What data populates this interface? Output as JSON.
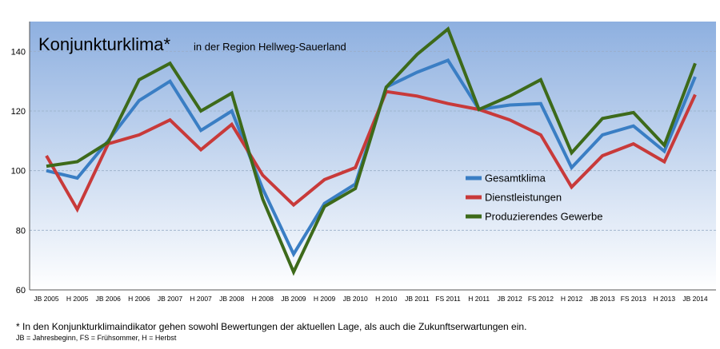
{
  "colors": {
    "gesamt": "#3a7ec4",
    "dienst": "#c83a3a",
    "prod": "#3d6a1a",
    "plot_top": "#8eb0e0",
    "plot_bottom": "#ffffff"
  },
  "chart_data": {
    "type": "line",
    "title": "Konjunkturklima*",
    "subtitle": "in der Region Hellweg-Sauerland",
    "xlabel": "",
    "ylabel": "",
    "ylim": [
      60,
      150
    ],
    "yticks": [
      60,
      80,
      100,
      120,
      140
    ],
    "grid": true,
    "legend_position": "right-center",
    "categories": [
      "JB 2005",
      "H 2005",
      "JB 2006",
      "H 2006",
      "JB 2007",
      "H 2007",
      "JB 2008",
      "H 2008",
      "JB 2009",
      "H 2009",
      "JB 2010",
      "H 2010",
      "JB 2011",
      "FS 2011",
      "H 2011",
      "JB 2012",
      "FS 2012",
      "H 2012",
      "JB 2013",
      "FS 2013",
      "H 2013",
      "JB 2014"
    ],
    "series": [
      {
        "name": "Gesamtklima",
        "color": "#3a7ec4",
        "values": [
          100,
          97.5,
          110,
          123.5,
          130,
          113.5,
          120,
          94,
          72,
          89,
          95.5,
          128,
          133,
          137,
          120.5,
          122,
          122.5,
          101,
          112,
          115,
          106.5,
          131.5
        ]
      },
      {
        "name": "Dienstleistungen",
        "color": "#c83a3a",
        "values": [
          105,
          87,
          109,
          112,
          117,
          107,
          115.5,
          98.5,
          88.5,
          97,
          101,
          126.5,
          125,
          122.5,
          120.5,
          117,
          112,
          94.5,
          105,
          109,
          103,
          125.5
        ]
      },
      {
        "name": "Produzierendes Gewerbe",
        "color": "#3d6a1a",
        "values": [
          101.5,
          103,
          109.5,
          130.5,
          136,
          120,
          126,
          90.5,
          66,
          88,
          94,
          128,
          139,
          147.5,
          120.5,
          125,
          130.5,
          106,
          117.5,
          119.5,
          108.5,
          136
        ]
      }
    ]
  },
  "footnote": "* In den Konjunkturklimaindikator gehen sowohl Bewertungen der aktuellen Lage, als auch die Zukunftserwartungen ein.",
  "abbreviations": "JB = Jahresbeginn, FS = Frühsommer, H = Herbst"
}
